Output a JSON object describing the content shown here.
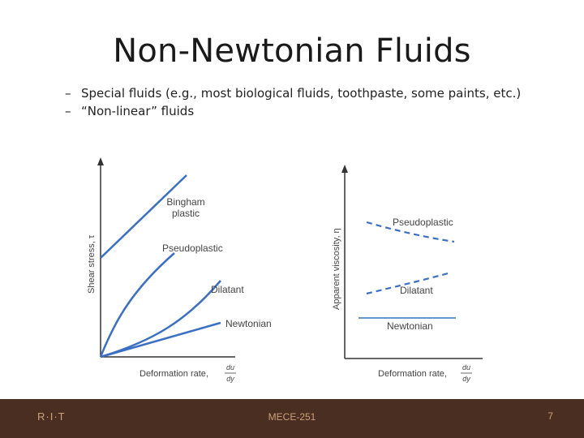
{
  "slide": {
    "title": "Non-Newtonian Fluids",
    "bullets": [
      {
        "marker": "–",
        "text": "Special fluids (e.g., most biological fluids, toothpaste, some paints, etc.)"
      },
      {
        "marker": "–",
        "text": "“Non-linear” fluids"
      }
    ]
  },
  "figure": {
    "left_chart": {
      "ylabel": "Shear stress, τ",
      "xlabel": "Deformation rate,",
      "xlabel_fraction": {
        "num": "du",
        "den": "dy"
      },
      "curves": [
        {
          "label_line1": "Bingham",
          "label_line2": "plastic"
        },
        {
          "label_line1": "Pseudoplastic"
        },
        {
          "label_line1": "Dilatant"
        },
        {
          "label_line1": "Newtonian"
        }
      ]
    },
    "right_chart": {
      "ylabel": "Apparent viscosity, η",
      "xlabel": "Deformation rate,",
      "xlabel_fraction": {
        "num": "du",
        "den": "dy"
      },
      "curves": [
        {
          "label": "Pseudoplastic"
        },
        {
          "label": "Dilatant"
        },
        {
          "label": "Newtonian"
        }
      ]
    },
    "line_color": "#3a6fc4"
  },
  "footer": {
    "logo": "R·I·T",
    "course": "MECE-251",
    "page": "7",
    "background": "#4b2e22"
  }
}
